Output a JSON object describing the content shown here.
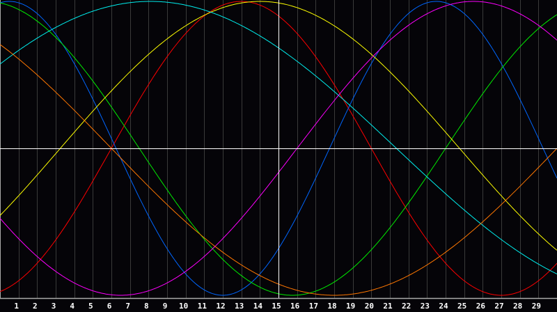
{
  "chart_data": {
    "type": "line",
    "title": "",
    "xlabel": "",
    "ylabel": "",
    "x_range": [
      0,
      30
    ],
    "ylim": [
      -1,
      1
    ],
    "grid": true,
    "current_day": 15,
    "tick_labels": [
      "1",
      "2",
      "3",
      "4",
      "5",
      "6",
      "7",
      "8",
      "9",
      "10",
      "11",
      "12",
      "13",
      "14",
      "15",
      "16",
      "17",
      "18",
      "19",
      "20",
      "21",
      "22",
      "23",
      "24",
      "25",
      "26",
      "27",
      "28",
      "29"
    ],
    "series": [
      {
        "color": "#ff0000",
        "period_days": 28,
        "peak_day": 13
      },
      {
        "color": "#0066ff",
        "period_days": 23,
        "peak_day": 0.5
      },
      {
        "color": "#00ee00",
        "period_days": 33,
        "peak_day": -0.75
      },
      {
        "color": "#ffff00",
        "period_days": 43,
        "peak_day": 14
      },
      {
        "color": "#00eeee",
        "period_days": 53,
        "peak_day": 8.1
      },
      {
        "color": "#ff00ff",
        "period_days": 38,
        "peak_day": 25.5
      },
      {
        "color": "#ff7700",
        "period_days": 48,
        "peak_day": -6
      }
    ],
    "colors": {
      "background": "#050408",
      "grid": "#3a3a3a",
      "axis": "#aaaaaa",
      "center_line": "#ffffff",
      "today_line": "#ffffff"
    }
  }
}
